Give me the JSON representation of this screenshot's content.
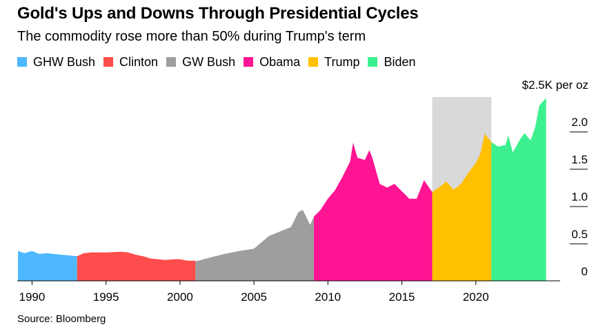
{
  "title": "Gold's Ups and Downs Through Presidential Cycles",
  "subtitle": "The commodity rose more than 50% during Trump's term",
  "source": "Source: Bloomberg",
  "legend": [
    {
      "label": "GHW Bush",
      "color": "#4DB8FF"
    },
    {
      "label": "Clinton",
      "color": "#FF4D4D"
    },
    {
      "label": "GW Bush",
      "color": "#9E9E9E"
    },
    {
      "label": "Obama",
      "color": "#FF1493"
    },
    {
      "label": "Trump",
      "color": "#FFC000"
    },
    {
      "label": "Biden",
      "color": "#3CF08F"
    }
  ],
  "chart_data": {
    "type": "area",
    "title": "Gold's Ups and Downs Through Presidential Cycles",
    "subtitle": "The commodity rose more than 50% during Trump's term",
    "ylabel": "$2.5K per oz",
    "ylim": [
      0,
      2.5
    ],
    "xlim": [
      1989,
      2025
    ],
    "y_ticks": [
      0,
      0.5,
      1.0,
      1.5,
      2.0
    ],
    "y_tick_labels": [
      "0",
      "0.5",
      "1.0",
      "1.5",
      "2.0"
    ],
    "x_ticks": [
      1990,
      1995,
      2000,
      2005,
      2010,
      2015,
      2020
    ],
    "x_tick_labels": [
      "1990",
      "1995",
      "2000",
      "2005",
      "2010",
      "2015",
      "2020"
    ],
    "highlight_band": {
      "x": [
        2017.05,
        2021.05
      ],
      "color": "#D9D9D9"
    },
    "series": [
      {
        "name": "GHW Bush",
        "color": "#4DB8FF",
        "x": [
          1989.05,
          1989.5,
          1990.0,
          1990.5,
          1991.0,
          1991.5,
          1992.0,
          1992.5,
          1993.05
        ],
        "y": [
          0.4,
          0.37,
          0.4,
          0.36,
          0.37,
          0.36,
          0.35,
          0.34,
          0.33
        ]
      },
      {
        "name": "Clinton",
        "color": "#FF4D4D",
        "x": [
          1993.05,
          1993.5,
          1994.0,
          1995.0,
          1996.0,
          1996.5,
          1997.0,
          1997.5,
          1998.0,
          1999.0,
          1999.7,
          2000.0,
          2000.5,
          2001.05
        ],
        "y": [
          0.33,
          0.37,
          0.38,
          0.38,
          0.39,
          0.38,
          0.35,
          0.33,
          0.3,
          0.28,
          0.29,
          0.29,
          0.27,
          0.27
        ]
      },
      {
        "name": "GW Bush",
        "color": "#9E9E9E",
        "x": [
          2001.05,
          2002.0,
          2003.0,
          2004.0,
          2005.0,
          2006.0,
          2006.5,
          2007.0,
          2007.5,
          2008.0,
          2008.3,
          2008.8,
          2009.05
        ],
        "y": [
          0.26,
          0.31,
          0.36,
          0.4,
          0.43,
          0.6,
          0.64,
          0.68,
          0.72,
          0.92,
          0.95,
          0.75,
          0.86
        ]
      },
      {
        "name": "Obama",
        "color": "#FF1493",
        "x": [
          2009.05,
          2009.5,
          2010.0,
          2010.5,
          2011.0,
          2011.5,
          2011.7,
          2012.0,
          2012.5,
          2012.8,
          2013.0,
          2013.5,
          2014.0,
          2014.5,
          2015.0,
          2015.5,
          2016.0,
          2016.5,
          2017.05
        ],
        "y": [
          0.86,
          0.95,
          1.1,
          1.22,
          1.4,
          1.6,
          1.85,
          1.65,
          1.62,
          1.75,
          1.65,
          1.3,
          1.25,
          1.3,
          1.2,
          1.1,
          1.1,
          1.35,
          1.19
        ]
      },
      {
        "name": "Trump",
        "color": "#FFC000",
        "x": [
          2017.05,
          2017.5,
          2018.0,
          2018.5,
          2019.0,
          2019.5,
          2020.0,
          2020.3,
          2020.6,
          2021.05
        ],
        "y": [
          1.19,
          1.25,
          1.33,
          1.22,
          1.3,
          1.45,
          1.58,
          1.7,
          1.97,
          1.86
        ]
      },
      {
        "name": "Biden",
        "color": "#3CF08F",
        "x": [
          2021.05,
          2021.5,
          2022.0,
          2022.2,
          2022.5,
          2023.0,
          2023.3,
          2023.7,
          2024.0,
          2024.3,
          2024.6,
          2024.75
        ],
        "y": [
          1.86,
          1.8,
          1.82,
          1.95,
          1.72,
          1.9,
          1.98,
          1.88,
          2.05,
          2.35,
          2.42,
          2.45
        ]
      }
    ]
  }
}
